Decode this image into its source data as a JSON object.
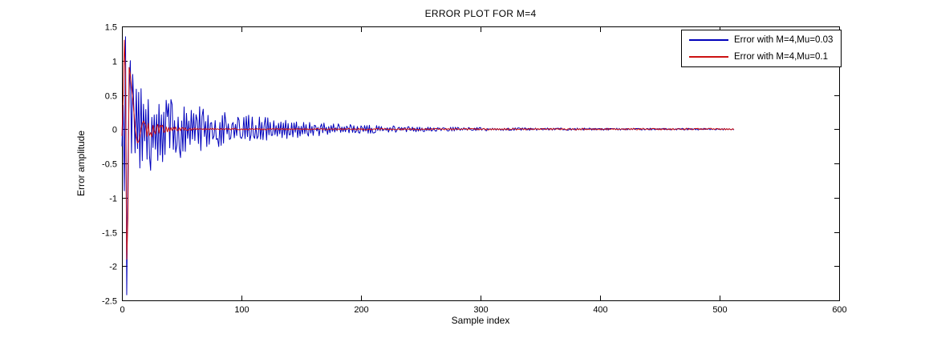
{
  "chart_data": {
    "type": "line",
    "title": "ERROR PLOT FOR M=4",
    "xlabel": "Sample index",
    "ylabel": "Error amplitude",
    "xlim": [
      0,
      600
    ],
    "ylim": [
      -2.5,
      1.5
    ],
    "x_ticks": [
      0,
      100,
      200,
      300,
      400,
      500,
      600
    ],
    "y_ticks": [
      1.5,
      1,
      0.5,
      0,
      -0.5,
      -1,
      -1.5,
      -2,
      -2.5
    ],
    "grid": false,
    "legend_position": "top-right",
    "n_samples": 512,
    "axis_color": "#000000",
    "background_color": "#ffffff",
    "series": [
      {
        "name": "Error with M=4,Mu=0.03",
        "color": "#0000bb",
        "line_width": 1,
        "seed": 1337,
        "envelope": {
          "amp": 0.85,
          "tau": 72,
          "floor": 0.012
        },
        "overrides": {
          "0": -0.25,
          "1": 0.35,
          "2": -0.9,
          "3": 1.35,
          "4": -2.42,
          "5": -0.6,
          "6": 0.55,
          "7": 1.0,
          "8": -0.35,
          "9": 0.8
        },
        "peak": 1.35,
        "min": -2.42,
        "approx_settle_sample": 200
      },
      {
        "name": "Error with M=4,Mu=0.1",
        "color": "#cc1111",
        "line_width": 1,
        "seed": 4242,
        "envelope": {
          "amp": 0.8,
          "tau": 12,
          "floor": 0.012
        },
        "overrides": {
          "0": -0.1,
          "1": 0.45,
          "2": 1.3,
          "3": 0.75,
          "4": -1.9,
          "5": -1.3,
          "6": 0.9,
          "7": 0.8,
          "8": 0.62,
          "9": 0.45,
          "10": 0.25,
          "11": 0.05,
          "12": -0.12,
          "13": -0.2,
          "14": -0.18,
          "15": -0.1,
          "16": 0.0,
          "17": 0.08,
          "18": 0.12,
          "19": 0.08
        },
        "peak": 1.3,
        "min": -1.9,
        "approx_settle_sample": 50
      }
    ]
  }
}
